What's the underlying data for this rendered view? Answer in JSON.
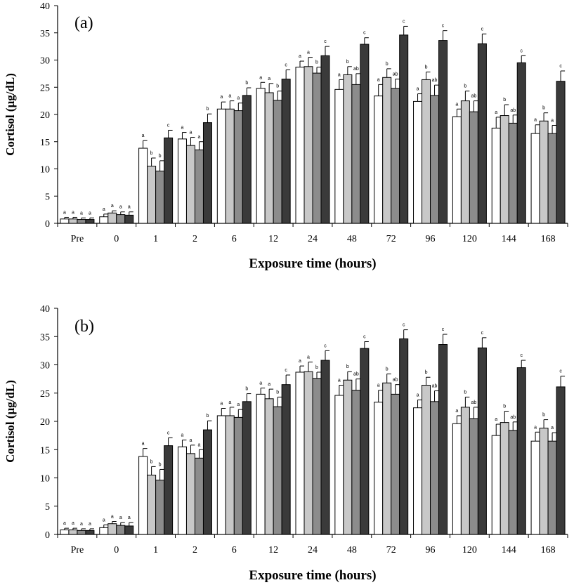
{
  "chart_data": [
    {
      "type": "bar",
      "panel_label": "(a)",
      "xlabel": "Exposure time (hours)",
      "ylabel": "Cortisol (μg/dL)",
      "ylim": [
        0,
        40
      ],
      "yticks": [
        0,
        5,
        10,
        15,
        20,
        25,
        30,
        35,
        40
      ],
      "grid": false,
      "categories": [
        "Pre",
        "0",
        "1",
        "2",
        "6",
        "12",
        "24",
        "48",
        "72",
        "96",
        "120",
        "144",
        "168"
      ],
      "series": [
        {
          "color": "#ffffff",
          "values": [
            0.8,
            1.2,
            13.8,
            15.5,
            21.0,
            24.8,
            28.7,
            24.6,
            23.4,
            22.4,
            19.6,
            17.5,
            16.5
          ],
          "errors": [
            0.3,
            0.5,
            1.4,
            1.2,
            1.3,
            1.1,
            1.1,
            1.8,
            2.1,
            1.4,
            1.4,
            2.0,
            1.6
          ],
          "sig": [
            "a",
            "a",
            "a",
            "a",
            "a",
            "a",
            "a",
            "a",
            "a",
            "a",
            "a",
            "a",
            "a"
          ]
        },
        {
          "color": "#c8c8c8",
          "values": [
            0.8,
            1.9,
            10.5,
            14.3,
            21.0,
            24.0,
            28.8,
            27.3,
            26.8,
            26.4,
            22.5,
            19.8,
            18.8
          ],
          "errors": [
            0.3,
            0.4,
            1.5,
            1.5,
            1.5,
            1.7,
            1.7,
            1.5,
            1.6,
            1.4,
            1.8,
            2.0,
            1.5
          ],
          "sig": [
            "a",
            "a",
            "b",
            "a",
            "a",
            "a",
            "a",
            "b",
            "b",
            "b",
            "b",
            "b",
            "b"
          ]
        },
        {
          "color": "#8c8c8c",
          "values": [
            0.7,
            1.6,
            9.6,
            13.5,
            20.7,
            22.6,
            27.6,
            25.5,
            24.8,
            23.5,
            20.5,
            18.4,
            16.5
          ],
          "errors": [
            0.3,
            0.5,
            1.9,
            1.5,
            1.4,
            1.7,
            1.1,
            2.0,
            1.7,
            1.9,
            2.0,
            1.5,
            1.5
          ],
          "sig": [
            "a",
            "a",
            "b",
            "a",
            "a",
            "b",
            "b",
            "ab",
            "ab",
            "ab",
            "ab",
            "ab",
            "a"
          ]
        },
        {
          "color": "#3a3a3a",
          "values": [
            0.7,
            1.5,
            15.7,
            18.5,
            23.5,
            26.5,
            30.8,
            32.9,
            34.6,
            33.6,
            33.0,
            29.5,
            26.1
          ],
          "errors": [
            0.3,
            0.6,
            1.4,
            1.6,
            1.4,
            1.7,
            1.7,
            1.2,
            1.6,
            1.8,
            1.8,
            1.3,
            1.9
          ],
          "sig": [
            "a",
            "a",
            "c",
            "b",
            "b",
            "c",
            "c",
            "c",
            "c",
            "c",
            "c",
            "c",
            "c"
          ]
        }
      ]
    },
    {
      "type": "bar",
      "panel_label": "(b)",
      "xlabel": "Exposure time (hours)",
      "ylabel": "Cortisol (μg/dL)",
      "ylim": [
        0,
        40
      ],
      "yticks": [
        0,
        5,
        10,
        15,
        20,
        25,
        30,
        35,
        40
      ],
      "grid": false,
      "categories": [
        "Pre",
        "0",
        "1",
        "2",
        "6",
        "12",
        "24",
        "48",
        "72",
        "96",
        "120",
        "144",
        "168"
      ],
      "series": [
        {
          "color": "#ffffff",
          "values": [
            0.8,
            1.2,
            13.8,
            15.5,
            21.0,
            24.8,
            28.7,
            24.6,
            23.4,
            22.4,
            19.6,
            17.5,
            16.5
          ],
          "errors": [
            0.3,
            0.5,
            1.4,
            1.2,
            1.3,
            1.1,
            1.1,
            1.8,
            2.1,
            1.4,
            1.4,
            2.0,
            1.6
          ],
          "sig": [
            "a",
            "a",
            "a",
            "a",
            "a",
            "a",
            "a",
            "a",
            "a",
            "a",
            "a",
            "a",
            "a"
          ]
        },
        {
          "color": "#c8c8c8",
          "values": [
            0.8,
            1.9,
            10.5,
            14.3,
            21.0,
            24.0,
            28.8,
            27.3,
            26.8,
            26.4,
            22.5,
            19.8,
            18.8
          ],
          "errors": [
            0.3,
            0.4,
            1.5,
            1.5,
            1.5,
            1.7,
            1.7,
            1.5,
            1.6,
            1.4,
            1.8,
            2.0,
            1.5
          ],
          "sig": [
            "a",
            "a",
            "b",
            "a",
            "a",
            "a",
            "a",
            "b",
            "b",
            "b",
            "b",
            "b",
            "b"
          ]
        },
        {
          "color": "#8c8c8c",
          "values": [
            0.7,
            1.6,
            9.6,
            13.5,
            20.7,
            22.6,
            27.6,
            25.5,
            24.8,
            23.5,
            20.5,
            18.4,
            16.5
          ],
          "errors": [
            0.3,
            0.5,
            1.9,
            1.5,
            1.4,
            1.7,
            1.1,
            2.0,
            1.7,
            1.9,
            2.0,
            1.5,
            1.5
          ],
          "sig": [
            "a",
            "a",
            "b",
            "a",
            "a",
            "b",
            "b",
            "ab",
            "ab",
            "ab",
            "ab",
            "ab",
            "a"
          ]
        },
        {
          "color": "#3a3a3a",
          "values": [
            0.7,
            1.5,
            15.7,
            18.5,
            23.5,
            26.5,
            30.8,
            32.9,
            34.6,
            33.6,
            33.0,
            29.5,
            26.1
          ],
          "errors": [
            0.3,
            0.6,
            1.4,
            1.6,
            1.4,
            1.7,
            1.7,
            1.2,
            1.6,
            1.8,
            1.8,
            1.3,
            1.9
          ],
          "sig": [
            "a",
            "a",
            "c",
            "b",
            "b",
            "c",
            "c",
            "c",
            "c",
            "c",
            "c",
            "c",
            "c"
          ]
        }
      ]
    }
  ]
}
